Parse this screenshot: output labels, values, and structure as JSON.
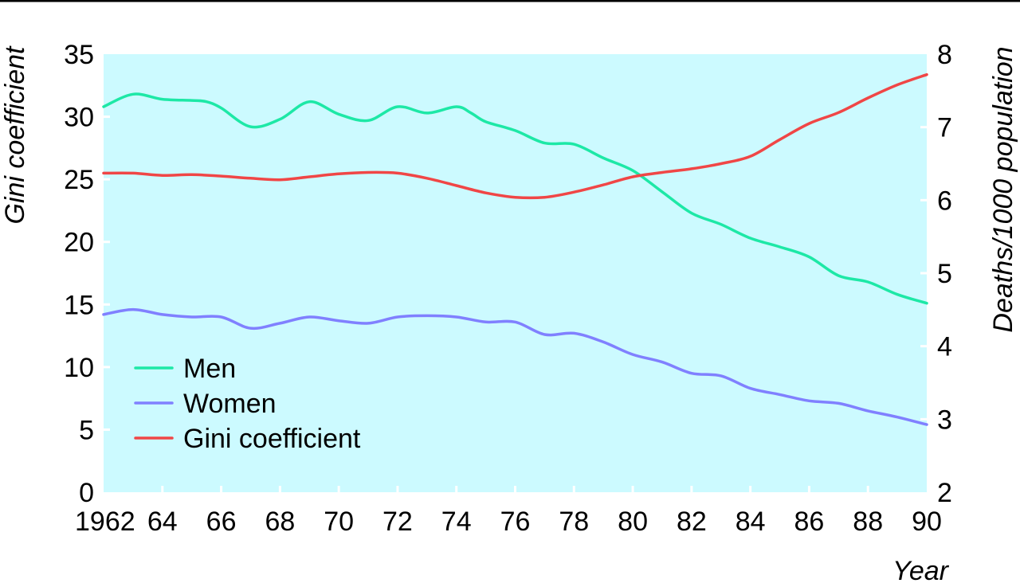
{
  "chart_data": {
    "type": "line",
    "xlabel": "Year",
    "ylabel_left": "Gini coefficient",
    "ylabel_right": "Deaths/1000 population",
    "x_ticks": [
      1962,
      1964,
      1966,
      1968,
      1970,
      1972,
      1974,
      1976,
      1978,
      1980,
      1982,
      1984,
      1986,
      1988,
      1990
    ],
    "x_tick_labels": [
      "1962",
      "64",
      "66",
      "68",
      "70",
      "72",
      "74",
      "76",
      "78",
      "80",
      "82",
      "84",
      "86",
      "88",
      "90"
    ],
    "xlim": [
      1962,
      1990
    ],
    "ylim_left": [
      0,
      35
    ],
    "ylim_right": [
      2,
      8
    ],
    "left_ticks": [
      "0",
      "5",
      "10",
      "15",
      "20",
      "25",
      "30",
      "35"
    ],
    "right_ticks": [
      "2",
      "3",
      "4",
      "5",
      "6",
      "7",
      "8"
    ],
    "background_color": "#ccfaff",
    "grid": false,
    "legend_position": "bottom-left",
    "series": [
      {
        "name": "Men",
        "axis": "left",
        "color": "#1de8a6",
        "points": [
          [
            1962,
            30.8
          ],
          [
            1963,
            31.8
          ],
          [
            1964,
            31.4
          ],
          [
            1965,
            31.3
          ],
          [
            1965.5,
            31.2
          ],
          [
            1966,
            30.7
          ],
          [
            1967,
            29.2
          ],
          [
            1968,
            29.8
          ],
          [
            1969,
            31.2
          ],
          [
            1970,
            30.2
          ],
          [
            1971,
            29.7
          ],
          [
            1972,
            30.8
          ],
          [
            1973,
            30.3
          ],
          [
            1974,
            30.8
          ],
          [
            1974.5,
            30.3
          ],
          [
            1975,
            29.6
          ],
          [
            1976,
            28.9
          ],
          [
            1977,
            27.9
          ],
          [
            1978,
            27.8
          ],
          [
            1979,
            26.7
          ],
          [
            1980,
            25.7
          ],
          [
            1981,
            24.0
          ],
          [
            1982,
            22.3
          ],
          [
            1983,
            21.4
          ],
          [
            1984,
            20.3
          ],
          [
            1985,
            19.6
          ],
          [
            1986,
            18.8
          ],
          [
            1987,
            17.3
          ],
          [
            1988,
            16.8
          ],
          [
            1989,
            15.8
          ],
          [
            1990,
            15.1
          ]
        ]
      },
      {
        "name": "Women",
        "axis": "left",
        "color": "#8080ff",
        "points": [
          [
            1962,
            14.2
          ],
          [
            1963,
            14.6
          ],
          [
            1964,
            14.2
          ],
          [
            1965,
            14.0
          ],
          [
            1966,
            14.0
          ],
          [
            1967,
            13.1
          ],
          [
            1968,
            13.5
          ],
          [
            1969,
            14.0
          ],
          [
            1970,
            13.7
          ],
          [
            1971,
            13.5
          ],
          [
            1972,
            14.0
          ],
          [
            1973,
            14.1
          ],
          [
            1974,
            14.0
          ],
          [
            1975,
            13.6
          ],
          [
            1976,
            13.6
          ],
          [
            1977,
            12.6
          ],
          [
            1978,
            12.7
          ],
          [
            1979,
            12.0
          ],
          [
            1980,
            11.0
          ],
          [
            1981,
            10.4
          ],
          [
            1982,
            9.5
          ],
          [
            1983,
            9.3
          ],
          [
            1984,
            8.3
          ],
          [
            1985,
            7.8
          ],
          [
            1986,
            7.3
          ],
          [
            1987,
            7.1
          ],
          [
            1988,
            6.5
          ],
          [
            1989,
            6.0
          ],
          [
            1990,
            5.4
          ]
        ]
      },
      {
        "name": "Gini coefficient",
        "axis": "right",
        "color": "#f04646",
        "points": [
          [
            1962,
            6.37
          ],
          [
            1963,
            6.37
          ],
          [
            1964,
            6.34
          ],
          [
            1965,
            6.35
          ],
          [
            1966,
            6.33
          ],
          [
            1967,
            6.3
          ],
          [
            1968,
            6.28
          ],
          [
            1969,
            6.32
          ],
          [
            1970,
            6.36
          ],
          [
            1971,
            6.38
          ],
          [
            1972,
            6.37
          ],
          [
            1973,
            6.3
          ],
          [
            1974,
            6.2
          ],
          [
            1975,
            6.1
          ],
          [
            1976,
            6.04
          ],
          [
            1977,
            6.04
          ],
          [
            1978,
            6.11
          ],
          [
            1979,
            6.21
          ],
          [
            1980,
            6.32
          ],
          [
            1981,
            6.38
          ],
          [
            1982,
            6.43
          ],
          [
            1983,
            6.5
          ],
          [
            1984,
            6.6
          ],
          [
            1985,
            6.83
          ],
          [
            1986,
            7.05
          ],
          [
            1987,
            7.2
          ],
          [
            1988,
            7.4
          ],
          [
            1989,
            7.58
          ],
          [
            1990,
            7.72
          ]
        ]
      }
    ]
  }
}
